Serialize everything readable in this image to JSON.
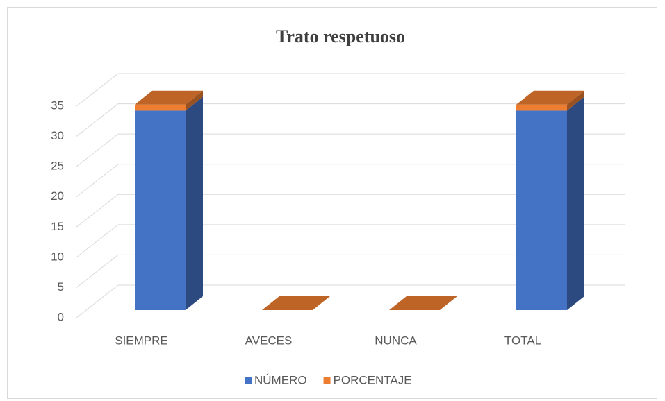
{
  "chart_data": {
    "type": "bar3d_stacked",
    "title": "Trato respetuoso",
    "categories": [
      "SIEMPRE",
      "AVECES",
      "NUNCA",
      "TOTAL"
    ],
    "series": [
      {
        "name": "NÚMERO",
        "color": "#4472c4",
        "values": [
          33,
          0,
          0,
          33
        ]
      },
      {
        "name": "PORCENTAJE",
        "color": "#ed7d31",
        "values": [
          1,
          0,
          0,
          1
        ]
      }
    ],
    "ylim": [
      0,
      35
    ],
    "yticks": [
      0,
      5,
      10,
      15,
      20,
      25,
      30,
      35
    ],
    "grid": true,
    "legend": "bottom"
  }
}
